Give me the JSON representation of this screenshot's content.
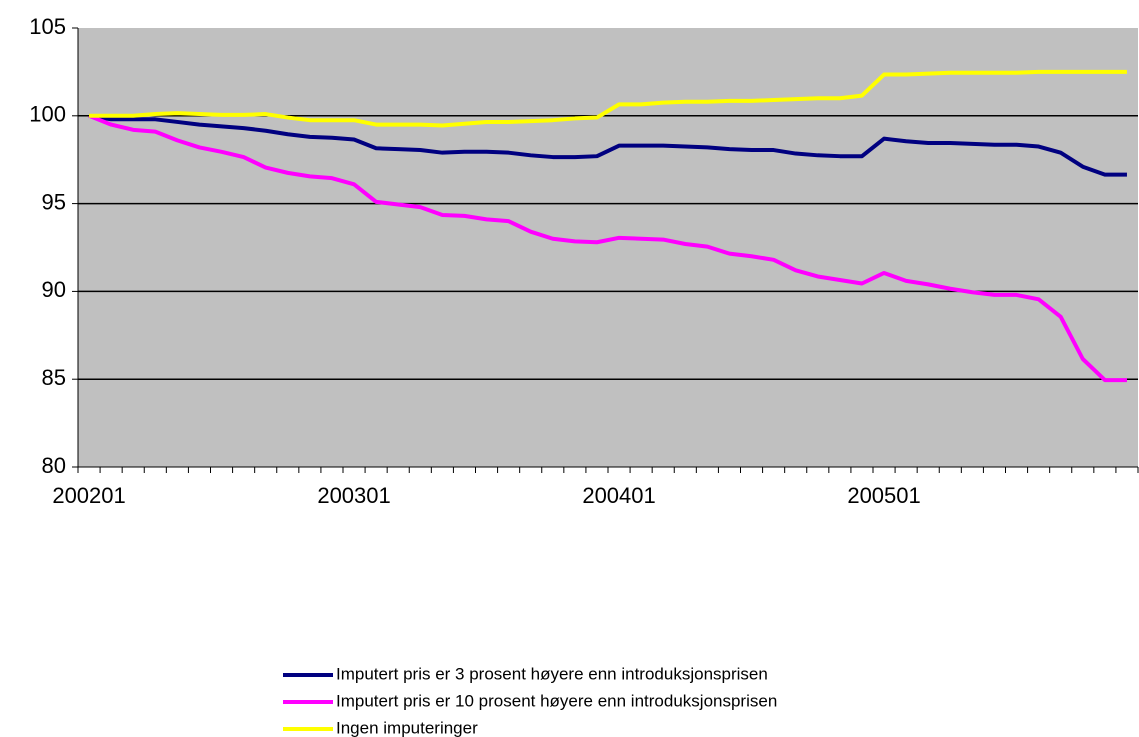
{
  "chart_data": {
    "type": "line",
    "categories": [
      "200201",
      null,
      null,
      null,
      null,
      null,
      null,
      null,
      null,
      null,
      null,
      null,
      "200301",
      null,
      null,
      null,
      null,
      null,
      null,
      null,
      null,
      null,
      null,
      null,
      "200401",
      null,
      null,
      null,
      null,
      null,
      null,
      null,
      null,
      null,
      null,
      null,
      "200501",
      null,
      null,
      null,
      null,
      null,
      null,
      null,
      null,
      null,
      null,
      null
    ],
    "series": [
      {
        "name": "Imputert pris er 3 prosent høyere enn introduksjonsprisen",
        "color": "#000080",
        "values": [
          100,
          99.8,
          99.8,
          99.8,
          99.65,
          99.5,
          99.4,
          99.3,
          99.15,
          98.95,
          98.8,
          98.75,
          98.65,
          98.15,
          98.1,
          98.05,
          97.9,
          97.95,
          97.95,
          97.9,
          97.75,
          97.65,
          97.65,
          97.7,
          98.3,
          98.3,
          98.3,
          98.25,
          98.2,
          98.1,
          98.05,
          98.05,
          97.85,
          97.75,
          97.7,
          97.7,
          98.7,
          98.55,
          98.45,
          98.45,
          98.4,
          98.35,
          98.35,
          98.25,
          97.9,
          97.1,
          96.65,
          96.65
        ]
      },
      {
        "name": "Imputert pris er 10 prosent høyere enn introduksjonsprisen",
        "color": "#ff00ff",
        "values": [
          100,
          99.5,
          99.2,
          99.1,
          98.6,
          98.2,
          97.95,
          97.65,
          97.05,
          96.75,
          96.55,
          96.45,
          96.1,
          95.1,
          94.95,
          94.8,
          94.35,
          94.3,
          94.1,
          94.0,
          93.4,
          93.0,
          92.85,
          92.8,
          93.05,
          93.0,
          92.95,
          92.7,
          92.55,
          92.15,
          92.0,
          91.8,
          91.2,
          90.85,
          90.65,
          90.45,
          91.05,
          90.6,
          90.4,
          90.15,
          89.95,
          89.8,
          89.8,
          89.55,
          88.55,
          86.15,
          84.95,
          84.95
        ]
      },
      {
        "name": "Ingen imputeringer",
        "color": "#ffff00",
        "values": [
          100,
          100,
          100,
          100.1,
          100.15,
          100.1,
          100.05,
          100.05,
          100.1,
          99.9,
          99.75,
          99.75,
          99.75,
          99.5,
          99.5,
          99.5,
          99.45,
          99.55,
          99.65,
          99.65,
          99.7,
          99.75,
          99.85,
          99.9,
          100.65,
          100.65,
          100.75,
          100.8,
          100.8,
          100.85,
          100.85,
          100.9,
          100.95,
          101,
          101,
          101.15,
          102.35,
          102.35,
          102.4,
          102.45,
          102.45,
          102.45,
          102.45,
          102.5,
          102.5,
          102.5,
          102.5,
          102.5
        ]
      }
    ],
    "ylim": [
      80,
      105
    ],
    "yticks": [
      80,
      85,
      90,
      95,
      100,
      105
    ],
    "grid": true,
    "background": "#c0c0c0",
    "legend": "bottom"
  }
}
